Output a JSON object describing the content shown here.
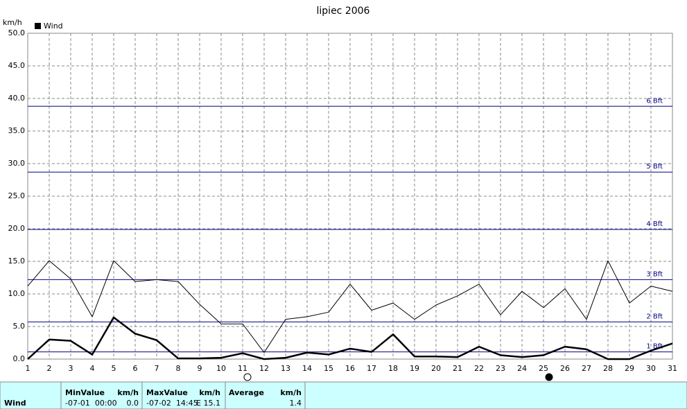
{
  "chart_data": {
    "type": "line",
    "title": "lipiec 2006",
    "y_label": "km/h",
    "x": [
      1,
      2,
      3,
      4,
      5,
      6,
      7,
      8,
      9,
      10,
      11,
      12,
      13,
      14,
      15,
      16,
      17,
      18,
      19,
      20,
      21,
      22,
      23,
      24,
      25,
      26,
      27,
      28,
      29,
      30,
      31
    ],
    "xlim": [
      1,
      31
    ],
    "xticks": [
      1,
      2,
      3,
      4,
      5,
      6,
      7,
      8,
      9,
      10,
      11,
      12,
      13,
      14,
      15,
      16,
      17,
      18,
      19,
      20,
      21,
      22,
      23,
      24,
      25,
      26,
      27,
      28,
      29,
      30,
      31
    ],
    "ylim": [
      0,
      50
    ],
    "yticks": [
      {
        "value": 0,
        "label": "0.0"
      },
      {
        "value": 5,
        "label": "5.0"
      },
      {
        "value": 10,
        "label": "10.0"
      },
      {
        "value": 15,
        "label": "15.0"
      },
      {
        "value": 20,
        "label": "20.0"
      },
      {
        "value": 25,
        "label": "25.0"
      },
      {
        "value": 30,
        "label": "30.0"
      },
      {
        "value": 35,
        "label": "35.0"
      },
      {
        "value": 40,
        "label": "40.0"
      },
      {
        "value": 45,
        "label": "45.0"
      },
      {
        "value": 50,
        "label": "50.0"
      }
    ],
    "grid": true,
    "series": [
      {
        "name": "Wind",
        "color": "#000000",
        "width": 2.5,
        "values": [
          0,
          3.0,
          2.8,
          0.7,
          6.4,
          3.9,
          2.9,
          0.1,
          0.1,
          0.2,
          0.9,
          0,
          0.2,
          1.0,
          0.7,
          1.6,
          1.1,
          3.8,
          0.4,
          0.4,
          0.3,
          1.9,
          0.6,
          0.3,
          0.6,
          1.9,
          1.5,
          0,
          0,
          1.3,
          2.4
        ]
      },
      {
        "color": "#000000",
        "width": 1,
        "values": [
          11.2,
          15.1,
          12.3,
          6.5,
          15.1,
          11.9,
          12.2,
          11.9,
          8.4,
          5.4,
          5.4,
          1.0,
          6.1,
          6.5,
          7.2,
          11.5,
          7.5,
          8.6,
          6.1,
          8.3,
          9.7,
          11.5,
          6.8,
          10.4,
          7.9,
          10.8,
          6.1,
          15.1,
          8.6,
          11.2,
          10.4
        ]
      }
    ],
    "reference_lines": [
      {
        "value": 1.1,
        "label": "1 Bft"
      },
      {
        "value": 5.7,
        "label": "2 Bft"
      },
      {
        "value": 12.2,
        "label": "3 Bft"
      },
      {
        "value": 19.9,
        "label": "4 Bft"
      },
      {
        "value": 28.7,
        "label": "5 Bft"
      },
      {
        "value": 38.8,
        "label": "6 Bft"
      }
    ],
    "reference_color": "#000080"
  },
  "table": {
    "header": [
      "MinValue",
      "km/h",
      "MaxValue",
      "km/h",
      "Average",
      "km/h"
    ],
    "row": [
      "Wind",
      "-07-01  00:00",
      "0.0",
      "-07-02  14:45",
      "E 15.1",
      "1.4"
    ]
  }
}
